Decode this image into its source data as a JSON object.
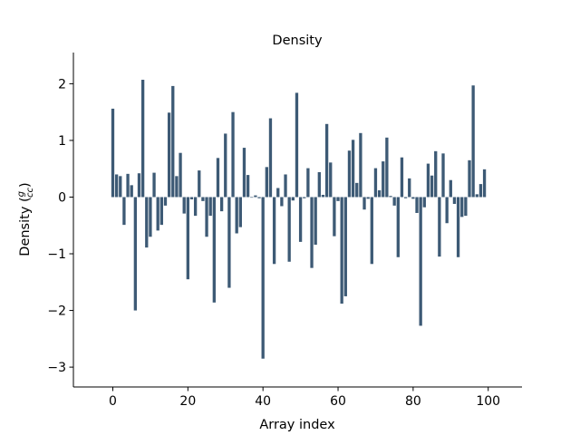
{
  "chart_data": {
    "type": "bar",
    "title": "Density",
    "xlabel": "Array index",
    "ylabel_main": "Density (",
    "ylabel_num": "g",
    "ylabel_den": "cc",
    "ylabel_close": ")",
    "xlim": [
      -10.5,
      109
    ],
    "ylim": [
      -3.35,
      2.55
    ],
    "xticks": [
      0,
      20,
      40,
      60,
      80,
      100
    ],
    "yticks": [
      -3,
      -2,
      -1,
      0,
      1,
      2
    ],
    "ytick_labels": [
      "−3",
      "−2",
      "−1",
      "0",
      "1",
      "2"
    ],
    "bar_color": "#3d5a75",
    "grid": false,
    "x": [
      0,
      1,
      2,
      3,
      4,
      5,
      6,
      7,
      8,
      9,
      10,
      11,
      12,
      13,
      14,
      15,
      16,
      17,
      18,
      19,
      20,
      21,
      22,
      23,
      24,
      25,
      26,
      27,
      28,
      29,
      30,
      31,
      32,
      33,
      34,
      35,
      36,
      37,
      38,
      39,
      40,
      41,
      42,
      43,
      44,
      45,
      46,
      47,
      48,
      49,
      50,
      51,
      52,
      53,
      54,
      55,
      56,
      57,
      58,
      59,
      60,
      61,
      62,
      63,
      64,
      65,
      66,
      67,
      68,
      69,
      70,
      71,
      72,
      73,
      74,
      75,
      76,
      77,
      78,
      79,
      80,
      81,
      82,
      83,
      84,
      85,
      86,
      87,
      88,
      89,
      90,
      91,
      92,
      93,
      94,
      95,
      96,
      97,
      98,
      99
    ],
    "values": [
      1.56,
      0.4,
      0.37,
      -0.49,
      0.41,
      0.21,
      -2.0,
      0.42,
      2.07,
      -0.89,
      -0.7,
      0.43,
      -0.59,
      -0.49,
      -0.15,
      1.49,
      1.96,
      0.37,
      0.78,
      -0.29,
      -1.45,
      -0.04,
      -0.33,
      0.47,
      -0.07,
      -0.7,
      -0.33,
      -1.86,
      0.69,
      -0.25,
      1.12,
      -1.6,
      1.5,
      -0.64,
      -0.53,
      0.87,
      0.39,
      -0.01,
      0.03,
      -0.02,
      -2.85,
      0.53,
      1.39,
      -1.18,
      0.16,
      -0.16,
      0.4,
      -1.14,
      -0.06,
      1.84,
      -0.79,
      -0.02,
      0.51,
      -1.25,
      -0.84,
      0.44,
      0.04,
      1.29,
      0.61,
      -0.69,
      -0.07,
      -1.88,
      -1.75,
      0.82,
      1.01,
      0.25,
      1.13,
      -0.22,
      -0.03,
      -1.18,
      0.51,
      0.12,
      0.63,
      1.05,
      0.02,
      -0.15,
      -1.06,
      0.7,
      -0.02,
      0.33,
      -0.03,
      -0.28,
      -2.27,
      -0.18,
      0.59,
      0.38,
      0.81,
      -1.05,
      0.77,
      -0.46,
      0.3,
      -0.12,
      -1.06,
      -0.35,
      -0.33,
      0.65,
      1.97,
      0.05,
      0.23,
      0.49
    ]
  }
}
